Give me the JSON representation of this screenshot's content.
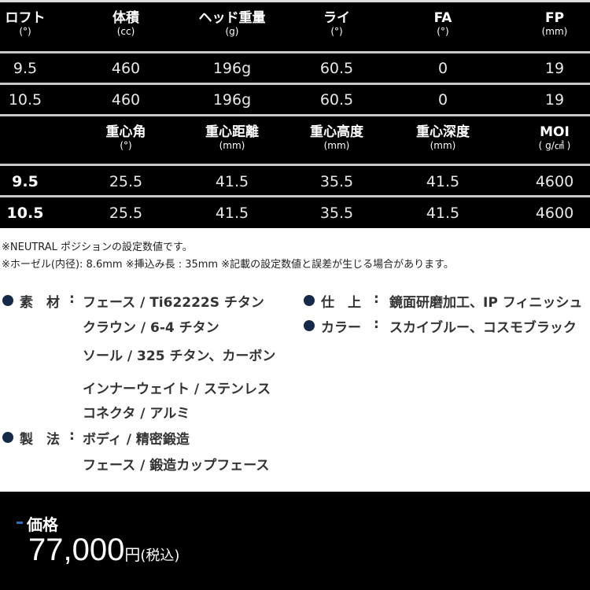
{
  "table1": {
    "headers": [
      {
        "t": "ロフト",
        "u": "(°)"
      },
      {
        "t": "体積",
        "u": "(cc)"
      },
      {
        "t": "ヘッド重量",
        "u": "(g)"
      },
      {
        "t": "ライ",
        "u": "(°)"
      },
      {
        "t": "FA",
        "u": "(°)"
      },
      {
        "t": "FP",
        "u": "(mm)"
      }
    ],
    "rows": [
      [
        "9.5",
        "460",
        "196g",
        "60.5",
        "0",
        "19"
      ],
      [
        "10.5",
        "460",
        "196g",
        "60.5",
        "0",
        "19"
      ]
    ]
  },
  "table2": {
    "headers": [
      {
        "t": "",
        "u": ""
      },
      {
        "t": "重心角",
        "u": "(°)"
      },
      {
        "t": "重心距離",
        "u": "(mm)"
      },
      {
        "t": "重心高度",
        "u": "(mm)"
      },
      {
        "t": "重心深度",
        "u": "(mm)"
      },
      {
        "t": "MOI",
        "u": "( g/㎠ )"
      }
    ],
    "rows": [
      [
        "9.5",
        "25.5",
        "41.5",
        "35.5",
        "41.5",
        "4600"
      ],
      [
        "10.5",
        "25.5",
        "41.5",
        "35.5",
        "41.5",
        "4600"
      ]
    ]
  },
  "notes": [
    "※NEUTRAL ポジションの設定数値です。",
    "※ホーゼル(内径): 8.6mm  ※挿込み長 : 35mm  ※記載の設定数値と誤差が生じる場合があります。"
  ],
  "specs": {
    "material": {
      "label": "素　材",
      "values": [
        "フェース / Ti62222S チタン",
        "クラウン / 6-4 チタン",
        "ソール / 325 チタン、カーボン",
        "インナーウェイト / ステンレス",
        "コネクタ / アルミ"
      ]
    },
    "method": {
      "label": "製　法",
      "values": [
        "ボディ / 精密鍛造",
        "フェース / 鍛造カップフェース"
      ]
    },
    "finish": {
      "label": "仕　上",
      "values": [
        "鏡面研磨加工、IP フィニッシュ"
      ]
    },
    "color": {
      "label": "カラー",
      "values": [
        "スカイブルー、コスモブラック"
      ]
    },
    "colon": ":"
  },
  "price": {
    "label": "価格",
    "amount": "77,000",
    "unit": "円",
    "tax": "(税込)"
  },
  "colors": {
    "bullet": "#152a48",
    "accent": "#2a6fc0",
    "background": "#000000"
  }
}
